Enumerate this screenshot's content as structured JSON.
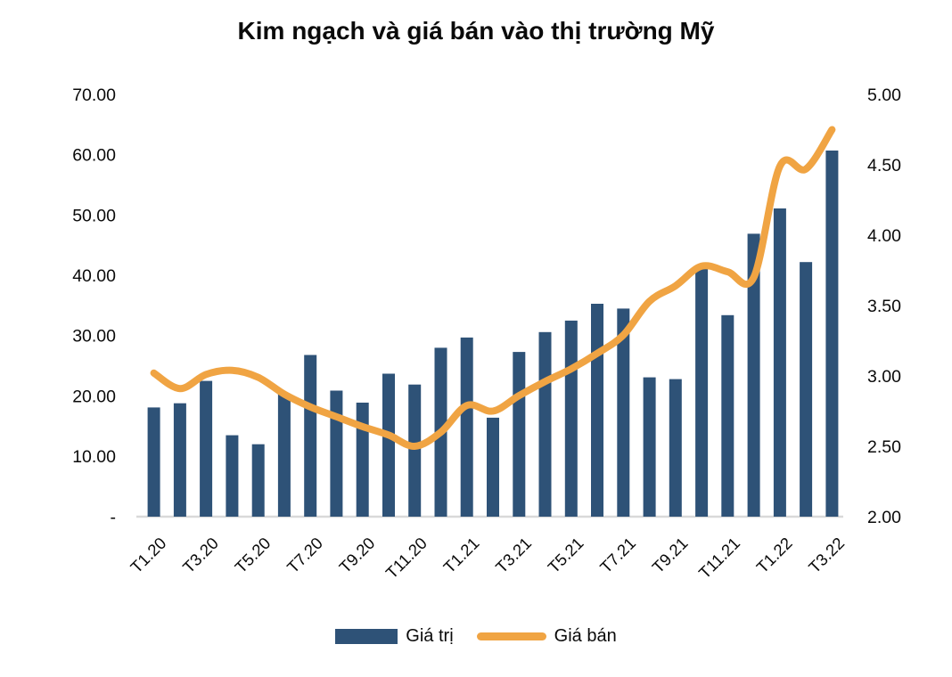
{
  "chart_data": {
    "type": "bar+line combo",
    "title": "Kim ngạch và giá bán vào thị trường Mỹ",
    "categories": [
      "T1.20",
      "T2.20",
      "T3.20",
      "T4.20",
      "T5.20",
      "T6.20",
      "T7.20",
      "T8.20",
      "T9.20",
      "T10.20",
      "T11.20",
      "T12.20",
      "T1.21",
      "T2.21",
      "T3.21",
      "T4.21",
      "T5.21",
      "T6.21",
      "T7.21",
      "T8.21",
      "T9.21",
      "T10.21",
      "T11.21",
      "T12.21",
      "T1.22",
      "T2.22",
      "T3.22"
    ],
    "x_tick_labels_shown": [
      "T1.20",
      "T3.20",
      "T5.20",
      "T7.20",
      "T9.20",
      "T11.20",
      "T1.21",
      "T3.21",
      "T5.21",
      "T7.21",
      "T9.21",
      "T11.21",
      "T1.22",
      "T3.22"
    ],
    "series": [
      {
        "name": "Giá trị",
        "type": "bar",
        "axis": "left",
        "values": [
          18.1,
          18.8,
          22.5,
          13.5,
          12.0,
          20.4,
          26.8,
          20.9,
          18.9,
          23.7,
          21.9,
          28.0,
          29.7,
          16.4,
          27.3,
          30.6,
          32.5,
          35.3,
          34.5,
          23.1,
          22.8,
          41.3,
          33.4,
          46.9,
          51.1,
          42.2,
          60.7
        ]
      },
      {
        "name": "Giá bán",
        "type": "line",
        "axis": "right",
        "values": [
          3.02,
          2.91,
          3.01,
          3.04,
          2.99,
          2.87,
          2.78,
          2.71,
          2.64,
          2.58,
          2.5,
          2.6,
          2.79,
          2.75,
          2.86,
          2.96,
          3.05,
          3.16,
          3.29,
          3.53,
          3.64,
          3.78,
          3.74,
          3.7,
          4.49,
          4.47,
          4.75
        ]
      }
    ],
    "left_axis": {
      "min": 0,
      "max": 70,
      "tick_labels": [
        "70.00",
        "60.00",
        "50.00",
        "40.00",
        "30.00",
        "20.00",
        "10.00",
        "-"
      ],
      "tick_values": [
        70,
        60,
        50,
        40,
        30,
        20,
        10,
        0
      ]
    },
    "right_axis": {
      "min": 2,
      "max": 5,
      "tick_labels": [
        "5.00",
        "4.50",
        "4.00",
        "3.50",
        "3.00",
        "2.50",
        "2.00"
      ],
      "tick_values": [
        5.0,
        4.5,
        4.0,
        3.5,
        3.0,
        2.5,
        2.0
      ]
    },
    "grid": "off",
    "legend_position": "bottom"
  },
  "legend": {
    "items": [
      {
        "label": "Giá trị",
        "marker": "bar-swatch"
      },
      {
        "label": "Giá bán",
        "marker": "line-swatch"
      }
    ]
  },
  "colors": {
    "bar": "#2E5277",
    "line": "#F0A443",
    "axis_line": "#D9D9D9",
    "text": "#0a0a0a"
  }
}
